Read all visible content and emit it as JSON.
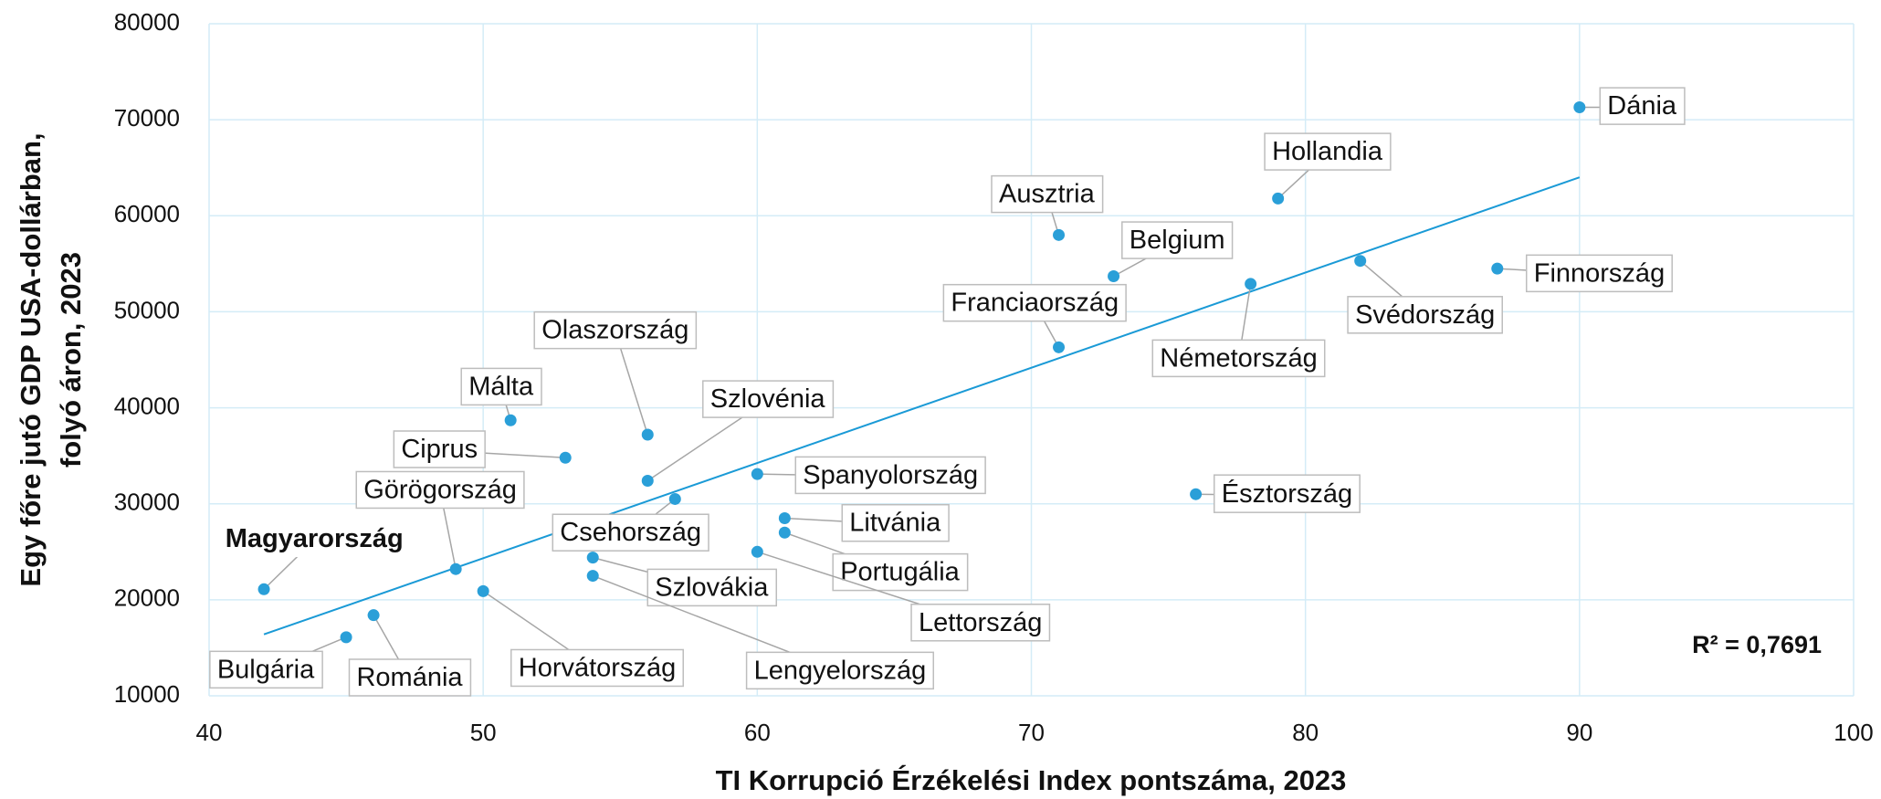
{
  "chart_data": {
    "type": "scatter",
    "xlabel": "TI Korrupció Érzékelési Index pontszáma, 2023",
    "ylabel": [
      "Egy főre jutó GDP USA-dollárban,",
      "folyó áron, 2023"
    ],
    "xlim": [
      40,
      100
    ],
    "xticks": [
      40,
      50,
      60,
      70,
      80,
      90,
      100
    ],
    "ylim": [
      10000,
      80000
    ],
    "yticks": [
      10000,
      20000,
      30000,
      40000,
      50000,
      60000,
      70000,
      80000
    ],
    "grid": true,
    "color": "#2a9fd8",
    "points": [
      {
        "label": "Dánia",
        "x": 90,
        "y": 71300
      },
      {
        "label": "Hollandia",
        "x": 79,
        "y": 61800
      },
      {
        "label": "Ausztria",
        "x": 71,
        "y": 58000
      },
      {
        "label": "Belgium",
        "x": 73,
        "y": 53700
      },
      {
        "label": "Franciaország",
        "x": 71,
        "y": 46300
      },
      {
        "label": "Németország",
        "x": 78,
        "y": 52900
      },
      {
        "label": "Svédország",
        "x": 82,
        "y": 55300
      },
      {
        "label": "Finnország",
        "x": 87,
        "y": 54500
      },
      {
        "label": "Észtország",
        "x": 76,
        "y": 31000
      },
      {
        "label": "Olaszország",
        "x": 56,
        "y": 37200
      },
      {
        "label": "Málta",
        "x": 51,
        "y": 38700
      },
      {
        "label": "Ciprus",
        "x": 53,
        "y": 34800
      },
      {
        "label": "Szlovénia",
        "x": 56,
        "y": 32400
      },
      {
        "label": "Spanyolország",
        "x": 60,
        "y": 33100
      },
      {
        "label": "Görögország",
        "x": 49,
        "y": 23200
      },
      {
        "label": "Csehország",
        "x": 57,
        "y": 30500
      },
      {
        "label": "Litvánia",
        "x": 61,
        "y": 28500
      },
      {
        "label": "Portugália",
        "x": 61,
        "y": 27000
      },
      {
        "label": "Lettország",
        "x": 60,
        "y": 25000
      },
      {
        "label": "Magyarország",
        "x": 42,
        "y": 21100,
        "label_color": "#e8141c"
      },
      {
        "label": "Szlovákia",
        "x": 54,
        "y": 24400
      },
      {
        "label": "Lengyelország",
        "x": 54,
        "y": 22500
      },
      {
        "label": "Horvátország",
        "x": 50,
        "y": 20900
      },
      {
        "label": "Bulgária",
        "x": 45,
        "y": 16100
      },
      {
        "label": "Románia",
        "x": 46,
        "y": 18400
      }
    ],
    "trendline": {
      "x": [
        42,
        90
      ],
      "y": [
        16400,
        64000
      ],
      "color": "#1a9ad6",
      "annotation": "R² = 0,7691"
    }
  }
}
